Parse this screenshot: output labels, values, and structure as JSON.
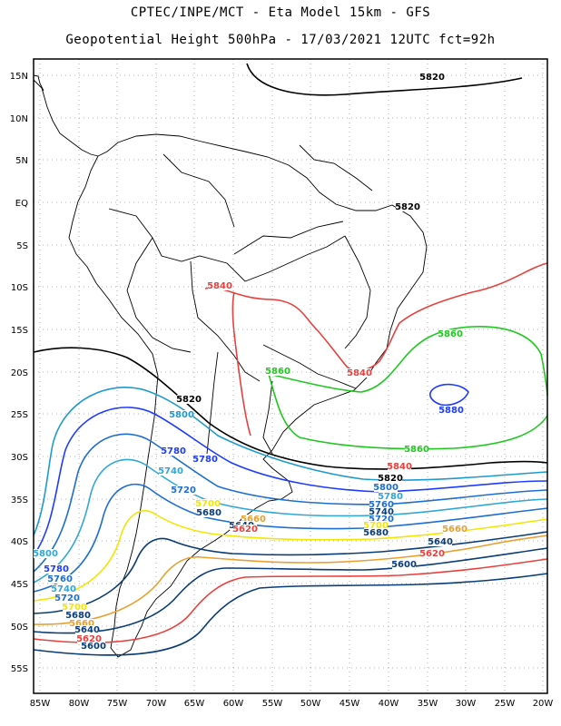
{
  "title": {
    "line1": "CPTEC/INPE/MCT -  Eta Model 15km - GFS",
    "line2": "Geopotential Height 500hPa - 17/03/2021 12UTC fct=92h"
  },
  "axes": {
    "x_ticks": [
      "85W",
      "80W",
      "75W",
      "70W",
      "65W",
      "60W",
      "55W",
      "50W",
      "45W",
      "40W",
      "35W",
      "30W",
      "25W",
      "20W"
    ],
    "y_ticks": [
      "15N",
      "10N",
      "5N",
      "EQ",
      "5S",
      "10S",
      "15S",
      "20S",
      "25S",
      "30S",
      "35S",
      "40S",
      "45S",
      "50S",
      "55S"
    ],
    "grid": true
  },
  "contour_labels": [
    {
      "text": "5820",
      "color": "#000000"
    },
    {
      "text": "5820",
      "color": "#000000"
    },
    {
      "text": "5840",
      "color": "#e8403c"
    },
    {
      "text": "5840",
      "color": "#e8403c"
    },
    {
      "text": "5860",
      "color": "#1ec81e"
    },
    {
      "text": "5860",
      "color": "#1ec81e"
    },
    {
      "text": "5860",
      "color": "#1ec81e"
    },
    {
      "text": "5880",
      "color": "#1e3cff"
    },
    {
      "text": "5820",
      "color": "#000000"
    },
    {
      "text": "5800",
      "color": "#1e9ad0"
    },
    {
      "text": "5780",
      "color": "#1e3cff"
    },
    {
      "text": "5780",
      "color": "#1e3cff"
    },
    {
      "text": "5740",
      "color": "#2fa8d8"
    },
    {
      "text": "5720",
      "color": "#1e6ed0"
    },
    {
      "text": "5700",
      "color": "#f2e600"
    },
    {
      "text": "5680",
      "color": "#0a3c78"
    },
    {
      "text": "5660",
      "color": "#e8a030"
    },
    {
      "text": "5640",
      "color": "#0a3c78"
    },
    {
      "text": "5620",
      "color": "#e8403c"
    },
    {
      "text": "5840",
      "color": "#e8403c"
    },
    {
      "text": "5820",
      "color": "#000000"
    },
    {
      "text": "5800",
      "color": "#1e6ed0"
    },
    {
      "text": "5780",
      "color": "#2fa8d8"
    },
    {
      "text": "5760",
      "color": "#1e6ed0"
    },
    {
      "text": "5740",
      "color": "#0a3c78"
    },
    {
      "text": "5720",
      "color": "#1e6ed0"
    },
    {
      "text": "5700",
      "color": "#f2e600"
    },
    {
      "text": "5680",
      "color": "#0a3c78"
    },
    {
      "text": "5660",
      "color": "#e8a030"
    },
    {
      "text": "5640",
      "color": "#0a3c78"
    },
    {
      "text": "5620",
      "color": "#e8403c"
    },
    {
      "text": "5600",
      "color": "#0a3c78"
    },
    {
      "text": "5800",
      "color": "#2fa8d8"
    },
    {
      "text": "5780",
      "color": "#1e3cff"
    },
    {
      "text": "5760",
      "color": "#1e6ed0"
    },
    {
      "text": "5740",
      "color": "#2fa8d8"
    },
    {
      "text": "5720",
      "color": "#1e6ed0"
    },
    {
      "text": "5700",
      "color": "#f2e600"
    },
    {
      "text": "5680",
      "color": "#0a3c78"
    },
    {
      "text": "5660",
      "color": "#e8a030"
    },
    {
      "text": "5640",
      "color": "#0a3c78"
    },
    {
      "text": "5620",
      "color": "#e8403c"
    },
    {
      "text": "5600",
      "color": "#0a3c78"
    }
  ]
}
